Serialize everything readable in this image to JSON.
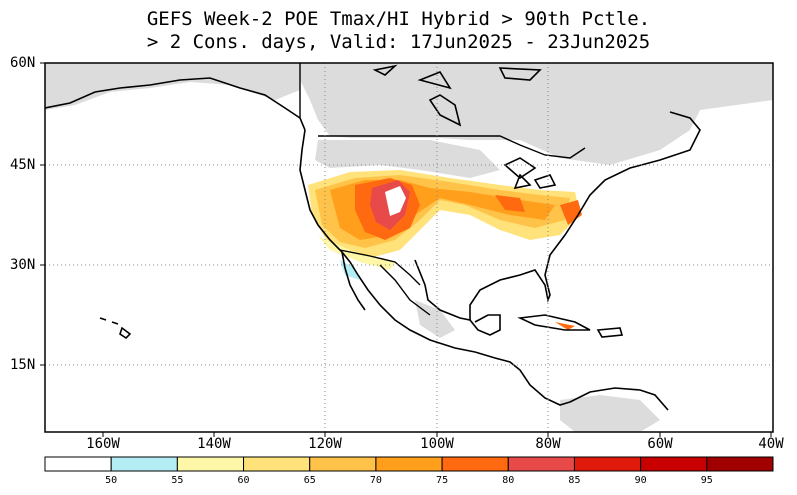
{
  "title": {
    "line1": "GEFS Week-2 POE Tmax/HI Hybrid > 90th Pctle.",
    "line2": "> 2 Cons. days, Valid: 17Jun2025 - 23Jun2025"
  },
  "axes": {
    "lat_labels": [
      "60N",
      "45N",
      "30N",
      "15N"
    ],
    "lon_labels": [
      "160W",
      "140W",
      "120W",
      "100W",
      "80W",
      "60W",
      "40W"
    ]
  },
  "colorbar": {
    "labels": [
      "50",
      "55",
      "60",
      "65",
      "70",
      "75",
      "80",
      "85",
      "90",
      "95"
    ],
    "colors": [
      "#ffffff",
      "#b4eef5",
      "#fff7a8",
      "#ffe27a",
      "#ffc34a",
      "#ff9f1c",
      "#ff6a10",
      "#e84a4a",
      "#e01a0a",
      "#c80000",
      "#a00000"
    ]
  },
  "colors": {
    "land_mask": "#dcdcdc",
    "coast": "#000000"
  }
}
